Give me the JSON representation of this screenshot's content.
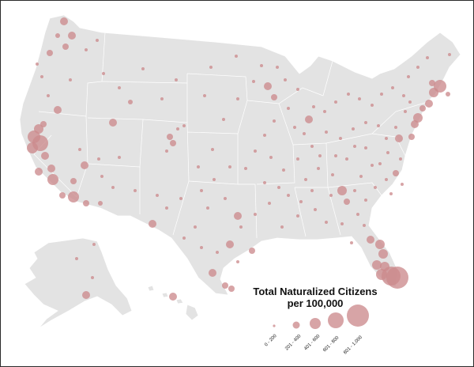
{
  "map": {
    "background": "#ffffff",
    "land_color": "#e3e3e3",
    "border_color": "#ffffff",
    "bubble_color": "#cc8b8d",
    "bubble_opacity": 0.78
  },
  "legend": {
    "title_line1": "Total Naturalized Citizens",
    "title_line2": "per 100,000",
    "classes": [
      {
        "label": "0 - 200"
      },
      {
        "label": "201 - 400"
      },
      {
        "label": "401 - 600"
      },
      {
        "label": "601 - 800"
      },
      {
        "label": "801 - 1,000"
      }
    ]
  }
}
